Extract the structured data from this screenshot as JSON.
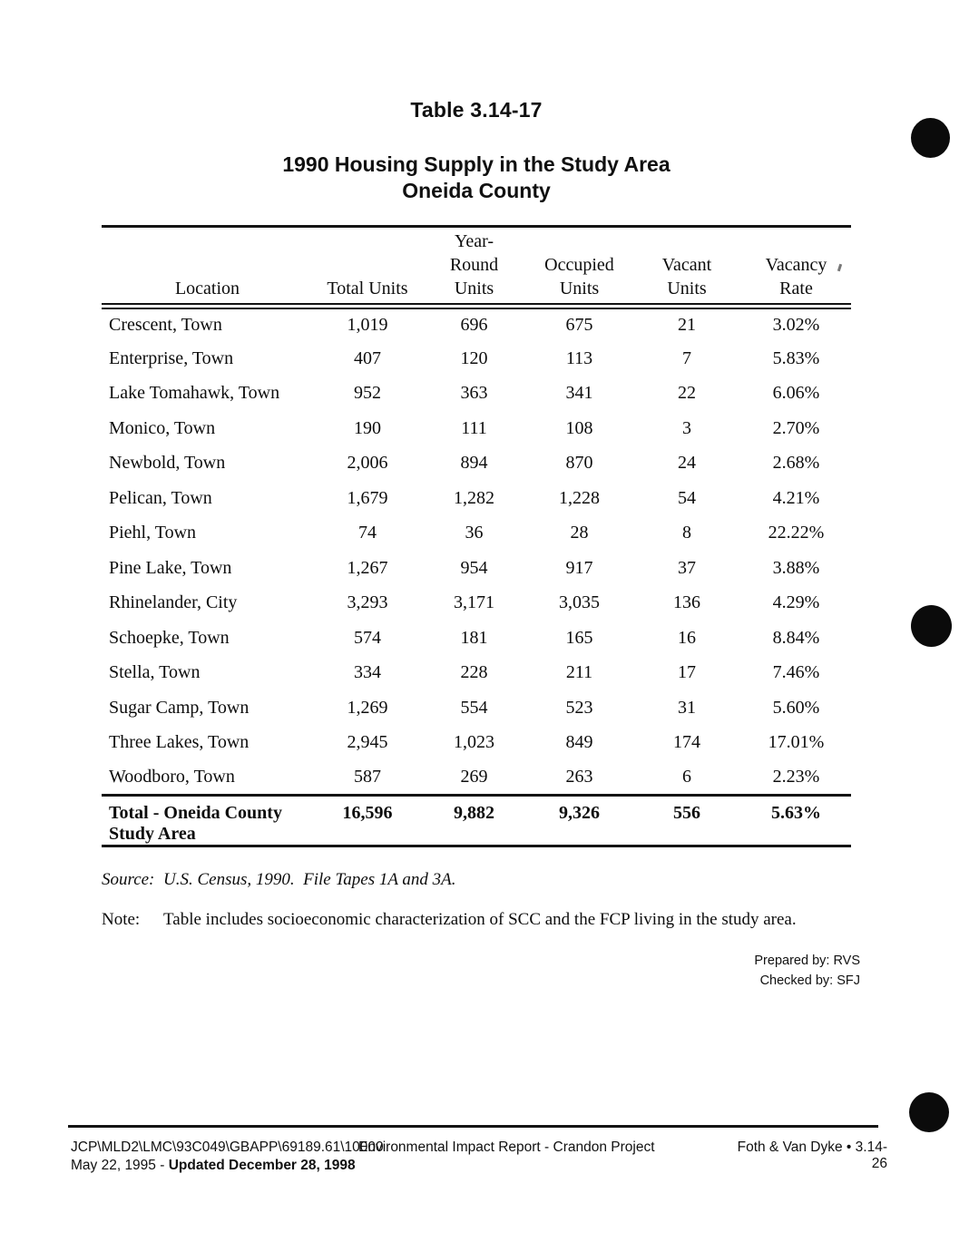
{
  "header": {
    "table_label": "Table 3.14-17",
    "title_line1": "1990 Housing Supply in the Study Area",
    "title_line2": "Oneida County"
  },
  "table": {
    "headers": [
      "Location",
      "Total Units",
      "Year-\nRound\nUnits",
      "Occupied\nUnits",
      "Vacant\nUnits",
      "Vacancy\nRate"
    ],
    "rows": [
      [
        "Crescent, Town",
        "1,019",
        "696",
        "675",
        "21",
        "3.02%"
      ],
      [
        "Enterprise, Town",
        "407",
        "120",
        "113",
        "7",
        "5.83%"
      ],
      [
        "Lake Tomahawk, Town",
        "952",
        "363",
        "341",
        "22",
        "6.06%"
      ],
      [
        "Monico, Town",
        "190",
        "111",
        "108",
        "3",
        "2.70%"
      ],
      [
        "Newbold, Town",
        "2,006",
        "894",
        "870",
        "24",
        "2.68%"
      ],
      [
        "Pelican, Town",
        "1,679",
        "1,282",
        "1,228",
        "54",
        "4.21%"
      ],
      [
        "Piehl, Town",
        "74",
        "36",
        "28",
        "8",
        "22.22%"
      ],
      [
        "Pine Lake, Town",
        "1,267",
        "954",
        "917",
        "37",
        "3.88%"
      ],
      [
        "Rhinelander, City",
        "3,293",
        "3,171",
        "3,035",
        "136",
        "4.29%"
      ],
      [
        "Schoepke, Town",
        "574",
        "181",
        "165",
        "16",
        "8.84%"
      ],
      [
        "Stella, Town",
        "334",
        "228",
        "211",
        "17",
        "7.46%"
      ],
      [
        "Sugar Camp, Town",
        "1,269",
        "554",
        "523",
        "31",
        "5.60%"
      ],
      [
        "Three Lakes, Town",
        "2,945",
        "1,023",
        "849",
        "174",
        "17.01%"
      ],
      [
        "Woodboro, Town",
        "587",
        "269",
        "263",
        "6",
        "2.23%"
      ]
    ],
    "total": [
      "Total - Oneida County\nStudy Area",
      "16,596",
      "9,882",
      "9,326",
      "556",
      "5.63%"
    ]
  },
  "source": {
    "label": "Source:",
    "text": "U.S. Census, 1990.  File Tapes 1A and 3A."
  },
  "note": {
    "label": "Note:",
    "text": "Table includes socioeconomic characterization of SCC and the FCP living in the study area."
  },
  "credits": {
    "prepared": "Prepared by: RVS",
    "checked": "Checked by: SFJ"
  },
  "footer": {
    "file_path": "JCP\\MLD2\\LMC\\93C049\\GBAPP\\69189.61\\10000",
    "center": "Environmental Impact Report - Crandon Project",
    "right": "Foth & Van Dyke • 3.14-26",
    "date_prefix": "May 22, 1995 - ",
    "date_updated": "Updated December 28, 1998"
  }
}
